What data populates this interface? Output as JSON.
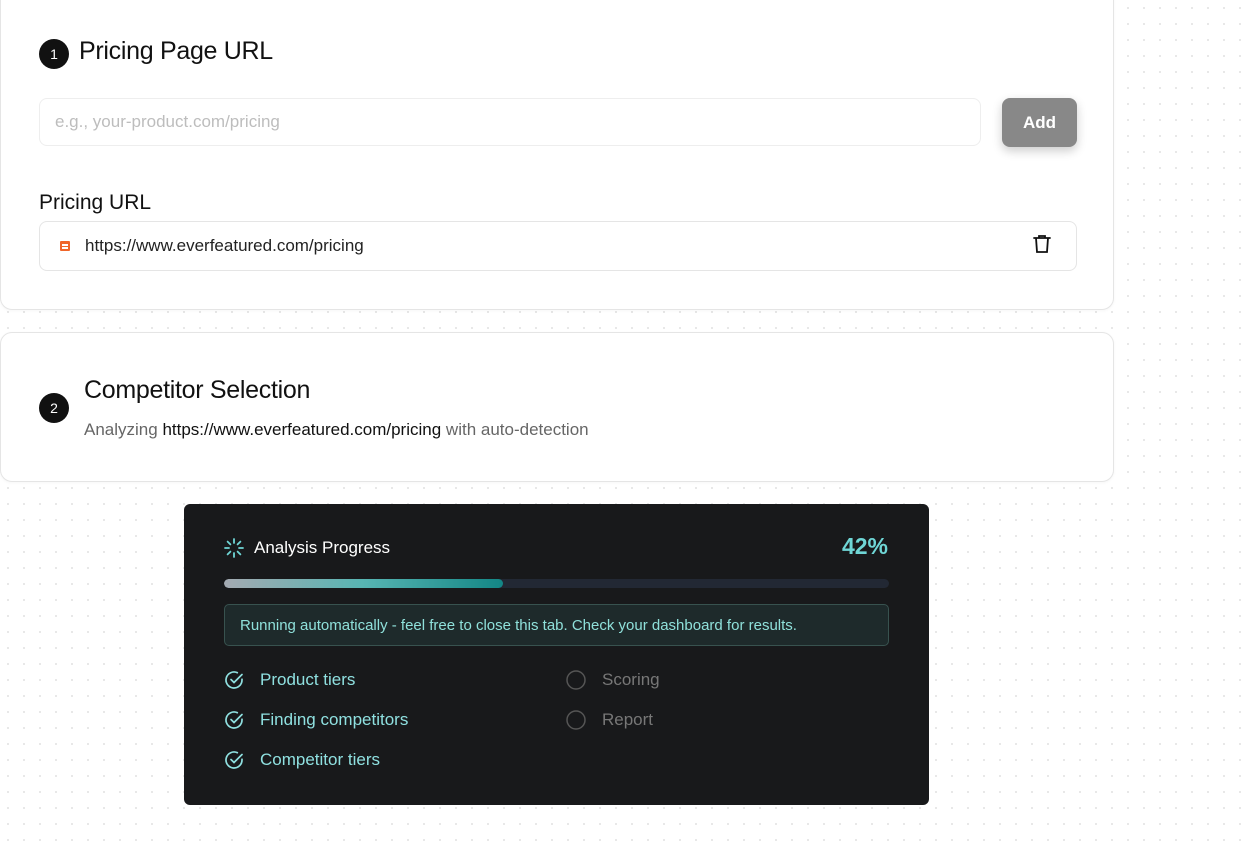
{
  "step1": {
    "number": "1",
    "title": "Pricing Page URL",
    "input_placeholder": "e.g., your-product.com/pricing",
    "input_value": "",
    "add_label": "Add",
    "list_label": "Pricing URL",
    "urls": [
      "https://www.everfeatured.com/pricing"
    ]
  },
  "step2": {
    "number": "2",
    "title": "Competitor Selection",
    "sub_prefix": "Analyzing",
    "sub_url": "https://www.everfeatured.com/pricing",
    "sub_suffix": "with auto-detection"
  },
  "progress": {
    "title": "Analysis Progress",
    "percent_label": "42%",
    "percent": 42,
    "note": "Running automatically - feel free to close this tab. Check your dashboard for results.",
    "steps": [
      {
        "label": "Product tiers",
        "status": "done"
      },
      {
        "label": "Finding competitors",
        "status": "done"
      },
      {
        "label": "Competitor tiers",
        "status": "done"
      },
      {
        "label": "Scoring",
        "status": "pending"
      },
      {
        "label": "Report",
        "status": "pending"
      }
    ],
    "accent": "#6fd6d6"
  }
}
